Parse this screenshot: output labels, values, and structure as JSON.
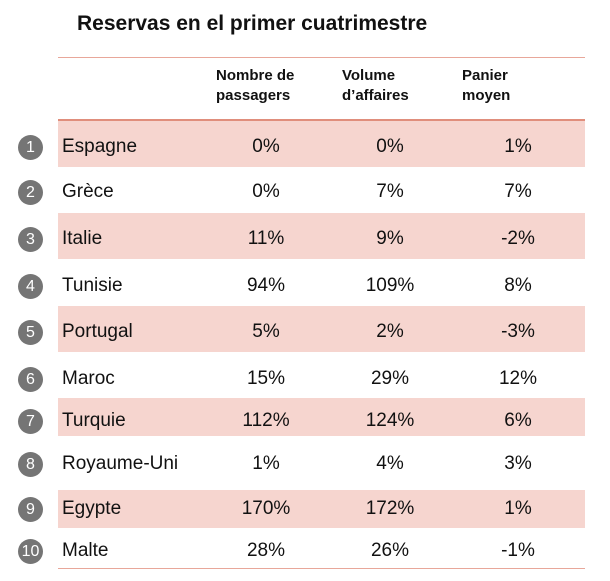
{
  "title": "Reservas en el primer cuatrimestre",
  "headers": [
    "Nombre de\npassagers",
    "Volume\nd’affaires",
    "Panier\nmoyen"
  ],
  "rows": [
    {
      "rank": "1",
      "country": "Espagne",
      "passengers": "0%",
      "business": "0%",
      "basket": "1%"
    },
    {
      "rank": "2",
      "country": "Grèce",
      "passengers": "0%",
      "business": "7%",
      "basket": "7%"
    },
    {
      "rank": "3",
      "country": "Italie",
      "passengers": "11%",
      "business": "9%",
      "basket": "-2%"
    },
    {
      "rank": "4",
      "country": "Tunisie",
      "passengers": "94%",
      "business": "109%",
      "basket": "8%"
    },
    {
      "rank": "5",
      "country": "Portugal",
      "passengers": "5%",
      "business": "2%",
      "basket": "-3%"
    },
    {
      "rank": "6",
      "country": "Maroc",
      "passengers": "15%",
      "business": "29%",
      "basket": "12%"
    },
    {
      "rank": "7",
      "country": "Turquie",
      "passengers": "112%",
      "business": "124%",
      "basket": "6%"
    },
    {
      "rank": "8",
      "country": "Royaume-Uni",
      "passengers": "1%",
      "business": "4%",
      "basket": "3%"
    },
    {
      "rank": "9",
      "country": "Egypte",
      "passengers": "170%",
      "business": "172%",
      "basket": "1%"
    },
    {
      "rank": "10",
      "country": "Malte",
      "passengers": "28%",
      "business": "26%",
      "basket": "-1%"
    }
  ],
  "colors": {
    "shade": "#f6d5cf",
    "rule": "#e08e7c",
    "badge": "#757575"
  }
}
